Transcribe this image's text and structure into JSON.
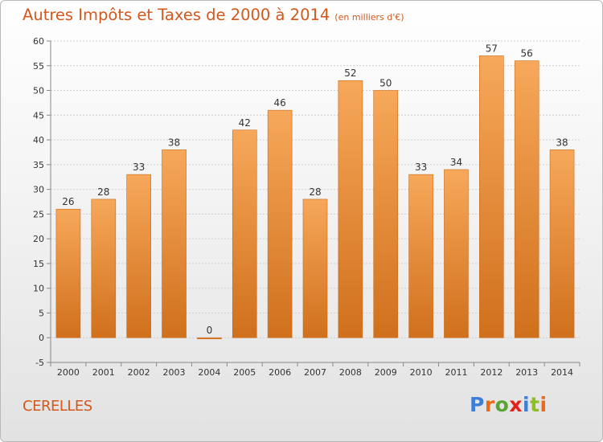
{
  "header": {
    "title": "Autres Impôts et Taxes de 2000 à 2014",
    "unit": "(en milliers d'€)"
  },
  "footer": {
    "commune": "CERELLES",
    "logo": {
      "letters": [
        "P",
        "r",
        "o",
        "x",
        "i",
        "t",
        "i"
      ],
      "colors": [
        "#3d7fd6",
        "#e86a1a",
        "#5aa532",
        "#e2231a",
        "#3d7fd6",
        "#8cbf26",
        "#e86a1a"
      ]
    }
  },
  "chart_data": {
    "type": "bar",
    "title": "Autres Impôts et Taxes de 2000 à 2014",
    "subtitle": "(en milliers d'€)",
    "categories": [
      "2000",
      "2001",
      "2002",
      "2003",
      "2004",
      "2005",
      "2006",
      "2007",
      "2008",
      "2009",
      "2010",
      "2011",
      "2012",
      "2013",
      "2014"
    ],
    "values": [
      26,
      28,
      33,
      38,
      0,
      42,
      46,
      28,
      52,
      50,
      33,
      34,
      57,
      56,
      38
    ],
    "ylim": [
      -5,
      60
    ],
    "yticks": [
      -5,
      0,
      5,
      10,
      15,
      20,
      25,
      30,
      35,
      40,
      45,
      50,
      55,
      60
    ],
    "grid": true,
    "bar_color_top": "#f7a85a",
    "bar_color_bottom": "#d0701c"
  }
}
